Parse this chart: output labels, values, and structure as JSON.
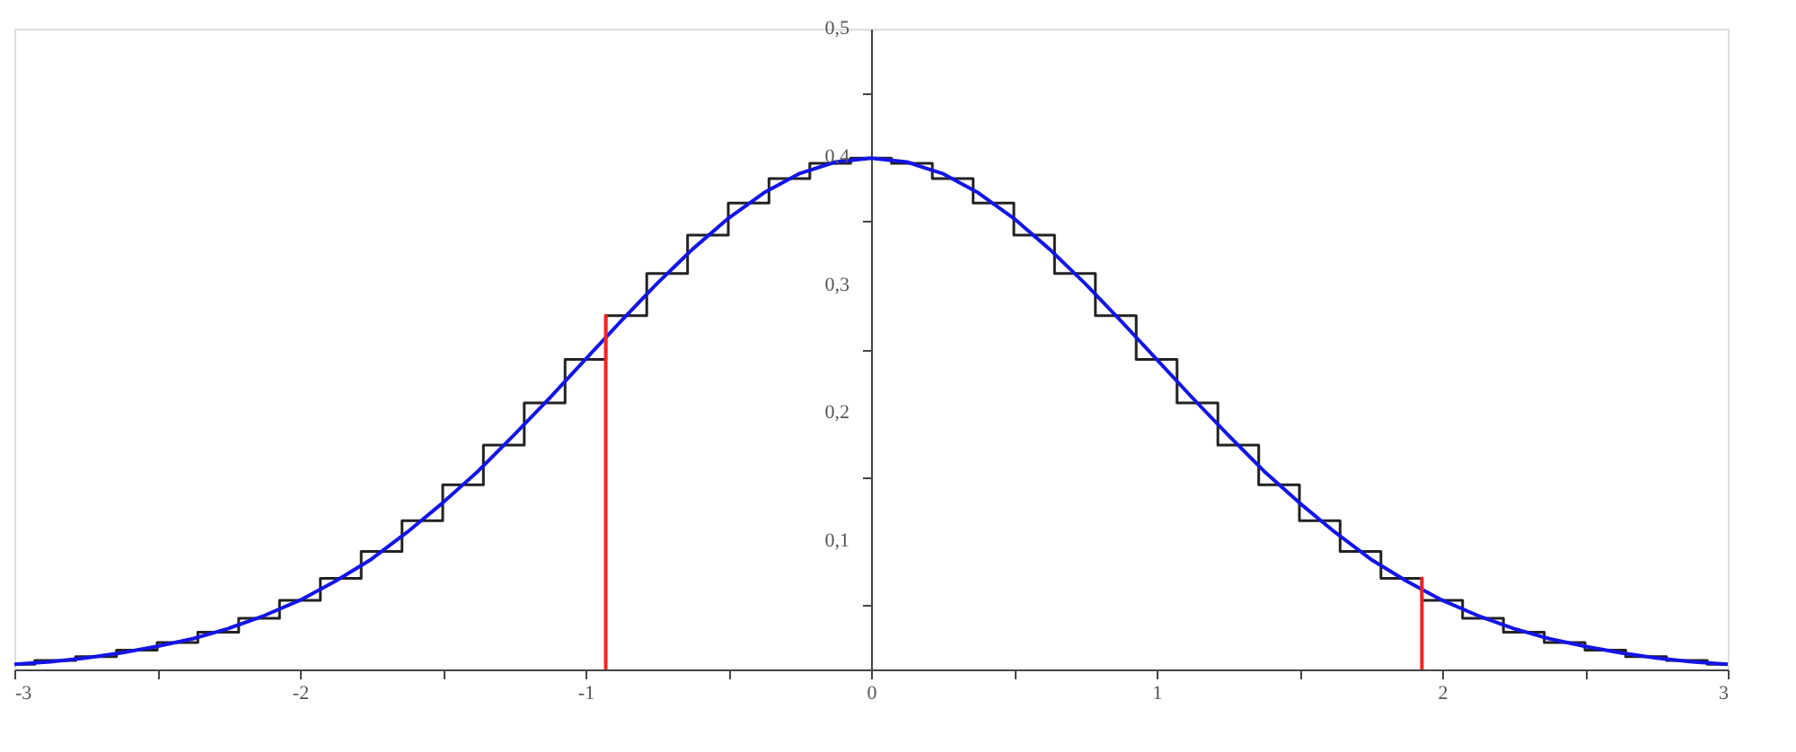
{
  "chart_data": {
    "type": "line",
    "xlim": [
      -3,
      3
    ],
    "ylim": [
      0,
      0.5
    ],
    "xticks": [
      -3,
      {
        "value": -2.5,
        "label": null
      },
      -2,
      {
        "value": -1.5,
        "label": null
      },
      -1,
      {
        "value": -0.5,
        "label": null
      },
      0,
      {
        "value": 0.5,
        "label": null
      },
      1,
      {
        "value": 1.5,
        "label": null
      },
      2,
      {
        "value": 2.5,
        "label": null
      },
      3
    ],
    "yticks": [
      {
        "value": 0.05,
        "label": null
      },
      {
        "value": 0.1,
        "label": "0,1"
      },
      {
        "value": 0.15,
        "label": null
      },
      {
        "value": 0.2,
        "label": "0,2"
      },
      {
        "value": 0.25,
        "label": null
      },
      {
        "value": 0.3,
        "label": "0,3"
      },
      {
        "value": 0.35,
        "label": null
      },
      {
        "value": 0.4,
        "label": "0,4"
      },
      {
        "value": 0.45,
        "label": null
      },
      {
        "value": 0.5,
        "label": "0,5"
      }
    ],
    "grid": false,
    "series": [
      {
        "type": "step",
        "color": "#222222",
        "x": [
          -3,
          -2.857,
          -2.714,
          -2.571,
          -2.429,
          -2.286,
          -2.143,
          -2,
          -1.857,
          -1.714,
          -1.571,
          -1.429,
          -1.286,
          -1.143,
          -1,
          -0.857,
          -0.714,
          -0.571,
          -0.429,
          -0.286,
          -0.143,
          0,
          0.143,
          0.286,
          0.429,
          0.571,
          0.714,
          0.857,
          1,
          1.143,
          1.286,
          1.429,
          1.571,
          1.714,
          1.857,
          2,
          2.143,
          2.286,
          2.429,
          2.571,
          2.714,
          2.857,
          3
        ],
        "values": [
          0.004,
          0.007,
          0.01,
          0.015,
          0.021,
          0.029,
          0.04,
          0.054,
          0.071,
          0.092,
          0.116,
          0.144,
          0.175,
          0.208,
          0.242,
          0.276,
          0.309,
          0.339,
          0.364,
          0.383,
          0.395,
          0.399,
          0.395,
          0.383,
          0.364,
          0.339,
          0.309,
          0.276,
          0.242,
          0.208,
          0.175,
          0.144,
          0.116,
          0.092,
          0.071,
          0.054,
          0.04,
          0.029,
          0.021,
          0.015,
          0.01,
          0.007,
          0.004
        ]
      },
      {
        "type": "line",
        "color": "#1414e6",
        "x": [
          -3,
          -2.875,
          -2.75,
          -2.625,
          -2.5,
          -2.375,
          -2.25,
          -2.125,
          -2,
          -1.875,
          -1.75,
          -1.625,
          -1.5,
          -1.375,
          -1.25,
          -1.125,
          -1,
          -0.875,
          -0.75,
          -0.625,
          -0.5,
          -0.375,
          -0.25,
          -0.125,
          0,
          0.125,
          0.25,
          0.375,
          0.5,
          0.625,
          0.75,
          0.875,
          1,
          1.125,
          1.25,
          1.375,
          1.5,
          1.625,
          1.75,
          1.875,
          2,
          2.125,
          2.25,
          2.375,
          2.5,
          2.625,
          2.75,
          2.875,
          3
        ],
        "values": [
          0.004,
          0.006,
          0.009,
          0.013,
          0.018,
          0.024,
          0.032,
          0.042,
          0.054,
          0.069,
          0.086,
          0.107,
          0.13,
          0.155,
          0.183,
          0.212,
          0.242,
          0.272,
          0.301,
          0.328,
          0.352,
          0.372,
          0.387,
          0.396,
          0.399,
          0.396,
          0.387,
          0.372,
          0.352,
          0.328,
          0.301,
          0.272,
          0.242,
          0.212,
          0.183,
          0.155,
          0.13,
          0.107,
          0.086,
          0.069,
          0.054,
          0.042,
          0.032,
          0.024,
          0.018,
          0.013,
          0.009,
          0.006,
          0.004
        ]
      },
      {
        "type": "line",
        "color": "#ff2020",
        "x": [
          -0.929,
          -0.929
        ],
        "values": [
          0,
          0.276
        ]
      },
      {
        "type": "line",
        "color": "#ff2020",
        "x": [
          1.929,
          1.929
        ],
        "values": [
          0,
          0.071
        ]
      }
    ]
  }
}
